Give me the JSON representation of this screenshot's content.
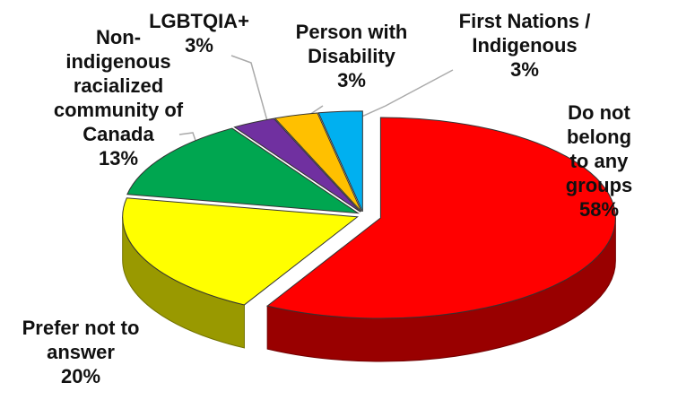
{
  "chart_data": {
    "type": "pie3d",
    "categories": [
      "Do not belong\nto any groups",
      "Prefer not to\nanswer",
      "Non-\nindigenous\nracialized\ncommunity of\nCanada",
      "LGBTQIA+",
      "Person with\nDisability",
      "First Nations /\nIndigenous"
    ],
    "values": [
      58,
      20,
      13,
      3,
      3,
      3
    ],
    "value_labels": [
      "58%",
      "20%",
      "13%",
      "3%",
      "3%",
      "3%"
    ],
    "colors": [
      "#ff0000",
      "#ffff00",
      "#00a650",
      "#7030a0",
      "#ffc000",
      "#00b0f0"
    ]
  }
}
